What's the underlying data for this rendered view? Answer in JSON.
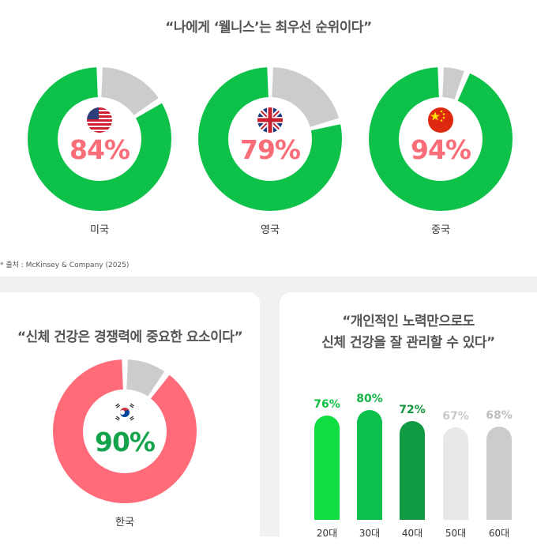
{
  "top": {
    "title": "“나에게 ‘웰니스’는 최우선 순위이다”",
    "source": "* 출처 : McKinsey & Company (2025)"
  },
  "left_card": {
    "title": "“신체 건강은 경쟁력에 중요한 요소이다”"
  },
  "right_card": {
    "title_line1": "“개인적인 노력만으로도",
    "title_line2": "신체 건강을 잘 관리할 수 있다”"
  },
  "colors": {
    "green": "#0dc149",
    "gray": "#cccccc",
    "pink": "#ff6b78",
    "pct_pink": "#f96d79",
    "pct_green": "#13a34a"
  },
  "chart_data": [
    {
      "type": "pie",
      "title": "“나에게 ‘웰니스’는 최우선 순위이다”",
      "slices": [
        {
          "label": "미국",
          "value": 84,
          "value_label": "84%",
          "flag": "us-flag-icon"
        },
        {
          "label": "영국",
          "value": 79,
          "value_label": "79%",
          "flag": "uk-flag-icon"
        },
        {
          "label": "중국",
          "value": 94,
          "value_label": "94%",
          "flag": "china-flag-icon"
        }
      ]
    },
    {
      "type": "pie",
      "title": "“신체 건강은 경쟁력에 중요한 요소이다”",
      "slices": [
        {
          "label": "한국",
          "value": 90,
          "value_label": "90%",
          "flag": "korea-flag-icon"
        }
      ]
    },
    {
      "type": "bar",
      "title": "“개인적인 노력만으로도 신체 건강을 잘 관리할 수 있다”",
      "categories": [
        "20대",
        "30대",
        "40대",
        "50대",
        "60대"
      ],
      "values": [
        76,
        80,
        72,
        67,
        68
      ],
      "value_labels": [
        "76%",
        "80%",
        "72%",
        "67%",
        "68%"
      ],
      "colors": [
        "#10dd42",
        "#0cc14b",
        "#109a42",
        "#e8e8e8",
        "#cccccc"
      ],
      "label_colors": [
        "#10c040",
        "#0fb447",
        "#12963f",
        "#c9c9c9",
        "#bdbdbd"
      ]
    }
  ]
}
